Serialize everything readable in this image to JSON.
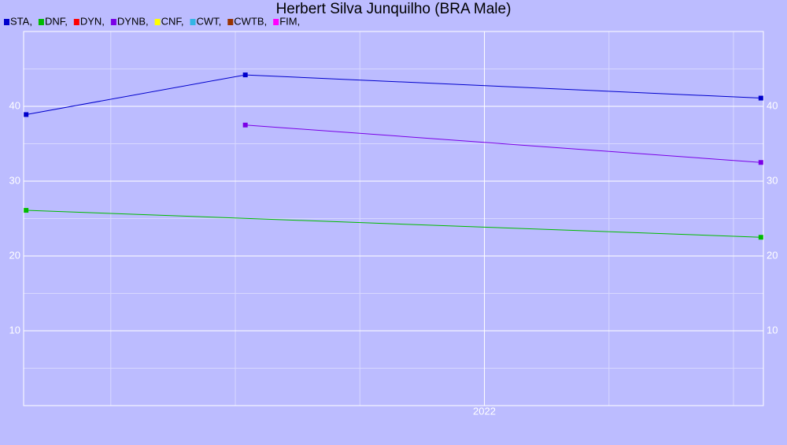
{
  "chart_data": {
    "type": "line",
    "title": "Herbert Silva Junquilho (BRA Male)",
    "series": [
      {
        "name": "STA,",
        "color": "#0000cc",
        "x": [
          2020.16,
          2021.04,
          2023.11
        ],
        "values": [
          38.9,
          44.2,
          41.1
        ]
      },
      {
        "name": "DNF,",
        "color": "#00bb00",
        "x": [
          2020.16,
          2023.11
        ],
        "values": [
          26.1,
          22.5
        ]
      },
      {
        "name": "DYN,",
        "color": "#ff0000",
        "x": [],
        "values": []
      },
      {
        "name": "DYNB,",
        "color": "#7a00e6",
        "x": [
          2021.04,
          2023.11
        ],
        "values": [
          37.5,
          32.5
        ]
      },
      {
        "name": "CNF,",
        "color": "#ffff00",
        "x": [],
        "values": []
      },
      {
        "name": "CWT,",
        "color": "#33b5e5",
        "x": [],
        "values": []
      },
      {
        "name": "CWTB,",
        "color": "#993300",
        "x": [],
        "values": []
      },
      {
        "name": "FIM,",
        "color": "#ff00ff",
        "x": [],
        "values": []
      }
    ],
    "xlim": [
      2020.15,
      2023.12
    ],
    "xticks": [
      2022
    ],
    "xminorticks": [
      2020.5,
      2021,
      2021.5,
      2022.5,
      2023
    ],
    "ylim": [
      0,
      50
    ],
    "yticks": [
      10,
      20,
      30,
      40
    ],
    "yminorticks": [
      5,
      15,
      25,
      35,
      45
    ],
    "grid": true,
    "background": "#bcbcff"
  }
}
